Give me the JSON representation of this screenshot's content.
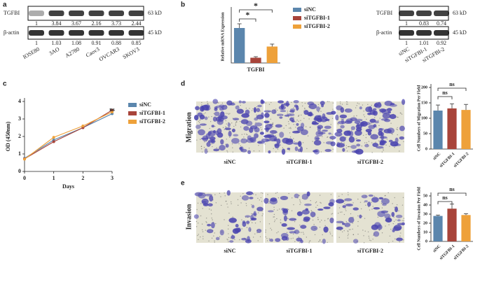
{
  "panel_letters": [
    "a",
    "b",
    "c",
    "d",
    "e"
  ],
  "panel_a": {
    "protein": "TGFBI",
    "control": "β-actin",
    "size_top": "63 kD",
    "size_bottom": "45 kD",
    "top_ratios": [
      1,
      3.84,
      3.67,
      2.16,
      3.73,
      2.44
    ],
    "bottom_ratios": [
      1,
      1.03,
      1.08,
      0.91,
      0.88,
      0.85
    ],
    "lanes": [
      "IOSE80",
      "3AO",
      "A2780",
      "Caov3",
      "OVCAR3",
      "SKOV3"
    ]
  },
  "panel_b_blot": {
    "protein": "TGFBI",
    "control": "β-actin",
    "size_top": "63 kD",
    "size_bottom": "45 kD",
    "top_ratios": [
      1,
      0.83,
      0.74
    ],
    "bottom_ratios": [
      1,
      1.01,
      0.92
    ],
    "lanes": [
      "siNC",
      "siTGFBI-1",
      "siTGFBI-2"
    ]
  },
  "micrographs": {
    "migration_label": "Migration",
    "invasion_label": "Invasion",
    "captions": [
      "siNC",
      "siTGFBI-1",
      "siTGFBI-2"
    ]
  },
  "chart_data": [
    {
      "type": "bar",
      "ylabel": "Relative mRNA Expression",
      "categories": [
        "TGFBI"
      ],
      "ylim": [
        0,
        1.5
      ],
      "series": [
        {
          "name": "siNC",
          "color": "#5b86ad",
          "values": [
            1.0
          ],
          "errors": [
            0.12
          ]
        },
        {
          "name": "siTGFBI-1",
          "color": "#a8443a",
          "values": [
            0.15
          ],
          "errors": [
            0.03
          ]
        },
        {
          "name": "siTGFBI-2",
          "color": "#eea13a",
          "values": [
            0.47
          ],
          "errors": [
            0.07
          ]
        }
      ],
      "annotations": [
        "*",
        "*"
      ]
    },
    {
      "type": "line",
      "xlabel": "Days",
      "ylabel": "OD (450nm)",
      "x": [
        0,
        1,
        2,
        3
      ],
      "xlim": [
        0,
        3
      ],
      "xticks": [
        0,
        1,
        2,
        3
      ],
      "ylim": [
        0,
        4
      ],
      "yticks": [
        0,
        1,
        2,
        3,
        4
      ],
      "series": [
        {
          "name": "siNC",
          "color": "#5b86ad",
          "values": [
            0.75,
            1.8,
            2.5,
            3.3
          ]
        },
        {
          "name": "siTGFBI-1",
          "color": "#a8443a",
          "values": [
            0.72,
            1.7,
            2.5,
            3.5
          ]
        },
        {
          "name": "siTGFBI-2",
          "color": "#eea13a",
          "values": [
            0.7,
            1.95,
            2.6,
            3.4
          ]
        }
      ],
      "annotations": [
        "ns"
      ]
    },
    {
      "type": "bar",
      "ylabel": "Cell Numbers of Migration Per Field",
      "categories": [
        "siNC",
        "siTGFBI-1",
        "siTGFBI-2"
      ],
      "values": [
        125,
        132,
        127
      ],
      "errors": [
        18,
        15,
        18
      ],
      "colors": [
        "#5b86ad",
        "#a8443a",
        "#eea13a"
      ],
      "ylim": [
        0,
        200
      ],
      "yticks": [
        0,
        50,
        100,
        150,
        200
      ],
      "annotations": [
        "ns",
        "ns"
      ]
    },
    {
      "type": "bar",
      "ylabel": "Cell Numbers of Invasion Per Field",
      "categories": [
        "siNC",
        "siTGFBI-1",
        "siTGFBI-2"
      ],
      "values": [
        28,
        36,
        29
      ],
      "errors": [
        1,
        5,
        1.5
      ],
      "colors": [
        "#5b86ad",
        "#a8443a",
        "#eea13a"
      ],
      "ylim": [
        0,
        50
      ],
      "yticks": [
        0,
        10,
        20,
        30,
        40,
        50
      ],
      "annotations": [
        "ns",
        "ns"
      ]
    }
  ]
}
